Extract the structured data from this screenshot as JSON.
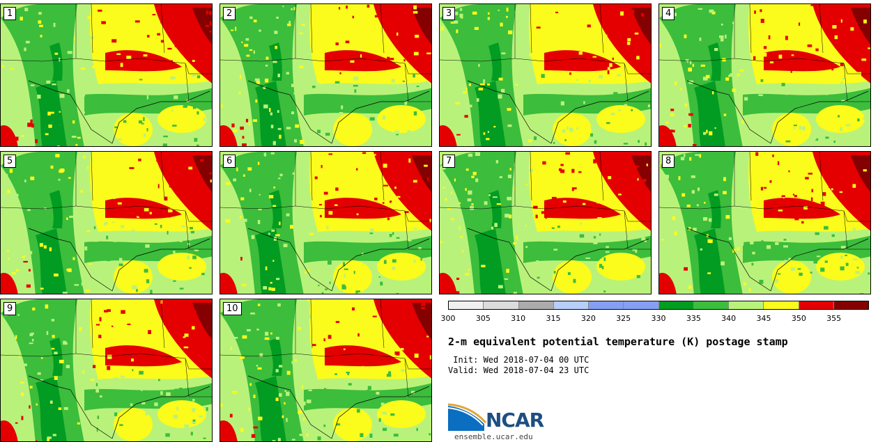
{
  "panels": [
    {
      "label": "1"
    },
    {
      "label": "2"
    },
    {
      "label": "3"
    },
    {
      "label": "4"
    },
    {
      "label": "5"
    },
    {
      "label": "6"
    },
    {
      "label": "7"
    },
    {
      "label": "8"
    },
    {
      "label": "9"
    },
    {
      "label": "10"
    }
  ],
  "colorbar": {
    "colors": [
      "#f0f0f0",
      "#dcdcdc",
      "#ababab",
      "#b7cff8",
      "#859ff5",
      "#859ff5",
      "#029c22",
      "#3cbd3c",
      "#b9f27a",
      "#fbfb1c",
      "#e40000",
      "#850000"
    ],
    "ticks": [
      "300",
      "305",
      "310",
      "315",
      "320",
      "325",
      "330",
      "335",
      "340",
      "345",
      "350",
      "355"
    ]
  },
  "title": "2-m equivalent potential temperature (K) postage stamp",
  "init_line": " Init: Wed 2018-07-04 00 UTC",
  "valid_line": "Valid: Wed 2018-07-04 23 UTC",
  "logo": {
    "text": "NCAR",
    "url": "ensemble.ucar.edu"
  }
}
